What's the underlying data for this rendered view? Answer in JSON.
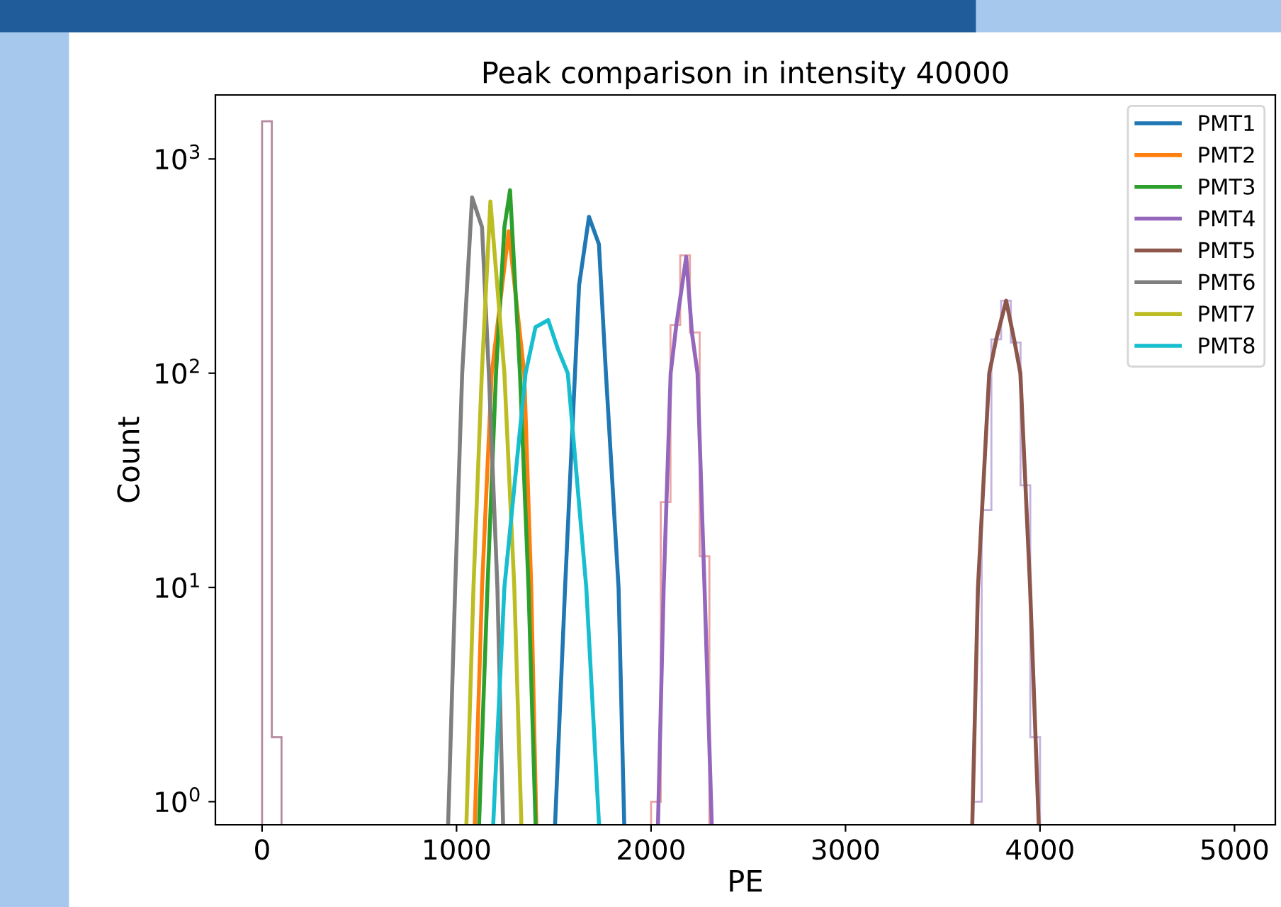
{
  "chart_data": {
    "type": "line",
    "title": "Peak comparison in intensity 40000",
    "xlabel": "PE",
    "ylabel": "Count",
    "log": "y",
    "xlim": [
      -240,
      5210
    ],
    "ylim": [
      0.78,
      1990
    ],
    "xticks": [
      0,
      1000,
      2000,
      3000,
      4000,
      5000
    ],
    "yticks": [
      {
        "value": 1,
        "label": "10$^{0}$"
      },
      {
        "value": 10,
        "label": "10$^{1}$"
      },
      {
        "value": 100,
        "label": "10$^{2}$"
      },
      {
        "value": 1000,
        "label": "10$^{3}$"
      }
    ],
    "legend": "top right",
    "grid": false,
    "series": [
      {
        "type": "histogram",
        "color": "#b58aa0",
        "bins": [
          0,
          50,
          100
        ],
        "values": [
          1500,
          2
        ]
      },
      {
        "type": "histogram",
        "color": "#eba3a3",
        "bins": [
          2000,
          2050,
          2100,
          2150,
          2200,
          2250,
          2300
        ],
        "values": [
          1,
          25,
          168,
          355,
          155,
          14
        ]
      },
      {
        "type": "histogram",
        "color": "#c3b2de",
        "bins": [
          3650,
          3700,
          3750,
          3800,
          3850,
          3900,
          3950,
          4000
        ],
        "values": [
          1,
          23,
          144,
          218,
          139,
          30,
          2
        ]
      },
      {
        "name": "PMT1",
        "color": "#1f77b4",
        "x": [
          1507,
          1558,
          1609,
          1630,
          1681,
          1732,
          1768,
          1833,
          1862
        ],
        "values": [
          0.8,
          10,
          100,
          257,
          537,
          400,
          100,
          10,
          0.8
        ]
      },
      {
        "name": "PMT2",
        "color": "#ff7f0e",
        "x": [
          1094,
          1131,
          1181,
          1268,
          1348,
          1384,
          1410
        ],
        "values": [
          0.8,
          10,
          100,
          460,
          100,
          10,
          0.8
        ]
      },
      {
        "name": "PMT3",
        "color": "#2ca02c",
        "x": [
          1116,
          1159,
          1203,
          1246,
          1275,
          1326,
          1370,
          1406
        ],
        "values": [
          0.8,
          10,
          100,
          480,
          715,
          100,
          10,
          0.8
        ]
      },
      {
        "name": "PMT4",
        "color": "#9467bd",
        "x": [
          2036,
          2065,
          2101,
          2130,
          2181,
          2210,
          2239,
          2275,
          2312
        ],
        "values": [
          0.8,
          10,
          100,
          168,
          349,
          155,
          100,
          10,
          0.8
        ]
      },
      {
        "name": "PMT5",
        "color": "#8c564b",
        "x": [
          3652,
          3681,
          3739,
          3775,
          3826,
          3870,
          3899,
          3949,
          3993
        ],
        "values": [
          0.8,
          10,
          100,
          144,
          218,
          139,
          100,
          10,
          0.8
        ]
      },
      {
        "name": "PMT6",
        "color": "#7f7f7f",
        "x": [
          957,
          993,
          1029,
          1080,
          1131,
          1166,
          1210,
          1239
        ],
        "values": [
          0.8,
          10,
          100,
          662,
          480,
          100,
          10,
          0.8
        ]
      },
      {
        "name": "PMT7",
        "color": "#bcbd22",
        "x": [
          1051,
          1087,
          1130,
          1174,
          1246,
          1297,
          1333
        ],
        "values": [
          0.8,
          10,
          100,
          633,
          100,
          10,
          0.8
        ]
      },
      {
        "name": "PMT8",
        "color": "#17becf",
        "x": [
          1189,
          1246,
          1355,
          1406,
          1471,
          1522,
          1572,
          1667,
          1732
        ],
        "values": [
          0.8,
          10,
          100,
          164,
          177,
          129,
          100,
          10,
          0.8
        ]
      }
    ]
  }
}
